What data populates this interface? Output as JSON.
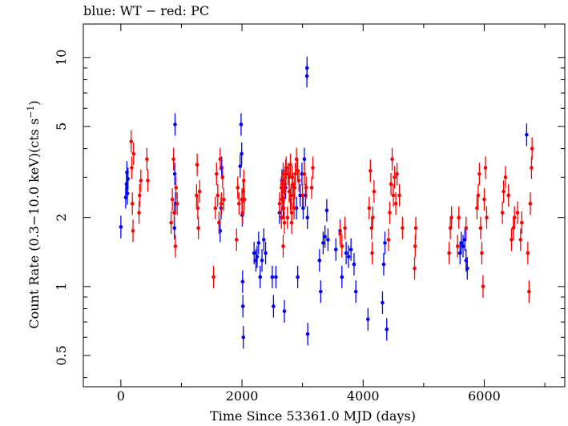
{
  "chart_data": {
    "type": "scatter",
    "title_parts": [
      "blue: WT",
      " − ",
      "red: PC"
    ],
    "xlabel": "Time Since 53361.0 MJD (days)",
    "ylabel_parts": [
      "Count Rate (0.3−10.0 keV)(cts s",
      "−1",
      ")"
    ],
    "x_ticks": [
      {
        "value": 0,
        "label": "0"
      },
      {
        "value": 2000,
        "label": "2000"
      },
      {
        "value": 4000,
        "label": "4000"
      },
      {
        "value": 6000,
        "label": "6000"
      }
    ],
    "y_ticks": [
      {
        "value": 0.5,
        "label": "0.5"
      },
      {
        "value": 1,
        "label": "1"
      },
      {
        "value": 2,
        "label": "2"
      },
      {
        "value": 5,
        "label": "5"
      },
      {
        "value": 10,
        "label": "10"
      }
    ],
    "xlim": [
      -620,
      7330
    ],
    "ylim": [
      0.365,
      14.0
    ],
    "y_scale": "log",
    "grid": false,
    "colors": {
      "WT": "#0000ff",
      "PC": "#ff0000"
    },
    "series": [
      {
        "name": "WT",
        "points": [
          [
            0,
            1.82
          ],
          [
            80,
            2.45
          ],
          [
            92,
            2.8
          ],
          [
            100,
            3.15
          ],
          [
            108,
            2.55
          ],
          [
            118,
            2.95
          ],
          [
            885,
            1.8
          ],
          [
            890,
            3.1
          ],
          [
            895,
            5.1
          ],
          [
            902,
            2.3
          ],
          [
            1640,
            1.75
          ],
          [
            1655,
            2.2
          ],
          [
            1665,
            3.3
          ],
          [
            1970,
            3.35
          ],
          [
            1985,
            5.1
          ],
          [
            1995,
            3.8
          ],
          [
            2005,
            2.05
          ],
          [
            2010,
            1.05
          ],
          [
            2015,
            0.82
          ],
          [
            2022,
            0.6
          ],
          [
            2200,
            1.4
          ],
          [
            2230,
            1.3
          ],
          [
            2250,
            1.35
          ],
          [
            2275,
            1.55
          ],
          [
            2300,
            1.1
          ],
          [
            2330,
            1.3
          ],
          [
            2360,
            1.6
          ],
          [
            2390,
            1.4
          ],
          [
            2500,
            1.1
          ],
          [
            2520,
            0.82
          ],
          [
            2560,
            1.1
          ],
          [
            2620,
            2.1
          ],
          [
            2660,
            2.9
          ],
          [
            2680,
            2.2
          ],
          [
            2700,
            0.78
          ],
          [
            2720,
            2.7
          ],
          [
            2900,
            2.2
          ],
          [
            2920,
            1.1
          ],
          [
            2960,
            2.5
          ],
          [
            2990,
            3.1
          ],
          [
            3010,
            2.2
          ],
          [
            3030,
            3.6
          ],
          [
            3050,
            2.5
          ],
          [
            3072,
            8.3
          ],
          [
            3074,
            9.0
          ],
          [
            3080,
            2.0
          ],
          [
            3085,
            0.62
          ],
          [
            3280,
            1.3
          ],
          [
            3300,
            0.95
          ],
          [
            3340,
            1.55
          ],
          [
            3370,
            1.65
          ],
          [
            3400,
            2.15
          ],
          [
            3420,
            1.6
          ],
          [
            3550,
            1.45
          ],
          [
            3620,
            1.75
          ],
          [
            3650,
            1.1
          ],
          [
            3720,
            1.4
          ],
          [
            3760,
            1.35
          ],
          [
            3800,
            1.45
          ],
          [
            3850,
            1.25
          ],
          [
            3880,
            0.95
          ],
          [
            4080,
            0.72
          ],
          [
            4320,
            0.85
          ],
          [
            4340,
            1.25
          ],
          [
            4360,
            1.55
          ],
          [
            4390,
            0.65
          ],
          [
            5600,
            1.4
          ],
          [
            5620,
            1.55
          ],
          [
            5650,
            1.5
          ],
          [
            5680,
            1.6
          ],
          [
            5700,
            1.3
          ],
          [
            5720,
            1.2
          ],
          [
            6700,
            4.6
          ]
        ]
      },
      {
        "name": "PC",
        "points": [
          [
            170,
            4.3
          ],
          [
            180,
            3.3
          ],
          [
            190,
            2.3
          ],
          [
            200,
            1.75
          ],
          [
            210,
            3.8
          ],
          [
            300,
            2.1
          ],
          [
            310,
            2.5
          ],
          [
            330,
            2.9
          ],
          [
            430,
            3.6
          ],
          [
            445,
            2.9
          ],
          [
            830,
            1.9
          ],
          [
            850,
            2.4
          ],
          [
            870,
            3.6
          ],
          [
            880,
            2.1
          ],
          [
            900,
            1.5
          ],
          [
            910,
            2.7
          ],
          [
            930,
            2.3
          ],
          [
            1250,
            2.5
          ],
          [
            1260,
            3.4
          ],
          [
            1270,
            2.2
          ],
          [
            1280,
            1.8
          ],
          [
            1300,
            2.6
          ],
          [
            1530,
            1.1
          ],
          [
            1560,
            2.2
          ],
          [
            1580,
            3.1
          ],
          [
            1600,
            2.5
          ],
          [
            1620,
            1.9
          ],
          [
            1640,
            3.6
          ],
          [
            1660,
            2.3
          ],
          [
            1680,
            3.0
          ],
          [
            1700,
            2.4
          ],
          [
            1910,
            1.6
          ],
          [
            1930,
            2.7
          ],
          [
            1950,
            2.3
          ],
          [
            2650,
            2.0
          ],
          [
            2700,
            2.6
          ],
          [
            2750,
            2.0
          ],
          [
            2780,
            3.0
          ],
          [
            2800,
            3.4
          ],
          [
            2810,
            2.5
          ],
          [
            2820,
            1.9
          ],
          [
            2650,
            2.7
          ],
          [
            2660,
            2.4
          ],
          [
            2670,
            2.6
          ],
          [
            2680,
            1.5
          ],
          [
            2690,
            2.2
          ],
          [
            2700,
            1.9
          ],
          [
            2710,
            2.8
          ],
          [
            2720,
            3.2
          ],
          [
            2000,
            2.4
          ],
          [
            2010,
            2.1
          ],
          [
            2020,
            2.6
          ],
          [
            2030,
            2.9
          ],
          [
            2040,
            2.4
          ],
          [
            2620,
            2.3
          ],
          [
            2660,
            2.8
          ],
          [
            2680,
            3.1
          ],
          [
            2700,
            2.7
          ],
          [
            2730,
            3.3
          ],
          [
            2760,
            3.1
          ],
          [
            2780,
            2.6
          ],
          [
            2800,
            2.4
          ],
          [
            2820,
            2.1
          ],
          [
            2830,
            3.0
          ],
          [
            2840,
            2.8
          ],
          [
            2850,
            2.5
          ],
          [
            2860,
            2.2
          ],
          [
            2870,
            2.7
          ],
          [
            2880,
            3.1
          ],
          [
            2900,
            3.6
          ],
          [
            2920,
            3.2
          ],
          [
            2940,
            2.9
          ],
          [
            3000,
            2.5
          ],
          [
            3030,
            3.1
          ],
          [
            3060,
            2.7
          ],
          [
            3150,
            2.7
          ],
          [
            3170,
            3.3
          ],
          [
            3620,
            1.7
          ],
          [
            3650,
            1.5
          ],
          [
            3700,
            1.8
          ],
          [
            4100,
            2.2
          ],
          [
            4120,
            3.2
          ],
          [
            4140,
            1.8
          ],
          [
            4150,
            1.4
          ],
          [
            4160,
            2.0
          ],
          [
            4180,
            2.6
          ],
          [
            4420,
            1.6
          ],
          [
            4440,
            2.1
          ],
          [
            4460,
            2.8
          ],
          [
            4480,
            3.6
          ],
          [
            4500,
            2.5
          ],
          [
            4520,
            3.0
          ],
          [
            4540,
            2.3
          ],
          [
            4560,
            3.1
          ],
          [
            4600,
            2.5
          ],
          [
            4650,
            1.8
          ],
          [
            4850,
            1.2
          ],
          [
            4860,
            1.5
          ],
          [
            4870,
            1.8
          ],
          [
            5420,
            1.4
          ],
          [
            5440,
            1.8
          ],
          [
            5460,
            2.0
          ],
          [
            5560,
            1.5
          ],
          [
            5580,
            2.0
          ],
          [
            5700,
            1.8
          ],
          [
            5880,
            2.2
          ],
          [
            5900,
            2.5
          ],
          [
            5920,
            3.1
          ],
          [
            5940,
            1.8
          ],
          [
            5960,
            1.4
          ],
          [
            5980,
            1.0
          ],
          [
            6000,
            2.4
          ],
          [
            6020,
            3.3
          ],
          [
            6040,
            2.0
          ],
          [
            6300,
            2.1
          ],
          [
            6320,
            2.6
          ],
          [
            6350,
            3.0
          ],
          [
            6400,
            2.5
          ],
          [
            6450,
            1.6
          ],
          [
            6480,
            1.8
          ],
          [
            6500,
            2.0
          ],
          [
            6550,
            2.1
          ],
          [
            6600,
            1.6
          ],
          [
            6620,
            1.9
          ],
          [
            6720,
            1.4
          ],
          [
            6740,
            0.95
          ],
          [
            6760,
            2.3
          ],
          [
            6780,
            3.3
          ],
          [
            6790,
            4.0
          ]
        ]
      }
    ]
  }
}
